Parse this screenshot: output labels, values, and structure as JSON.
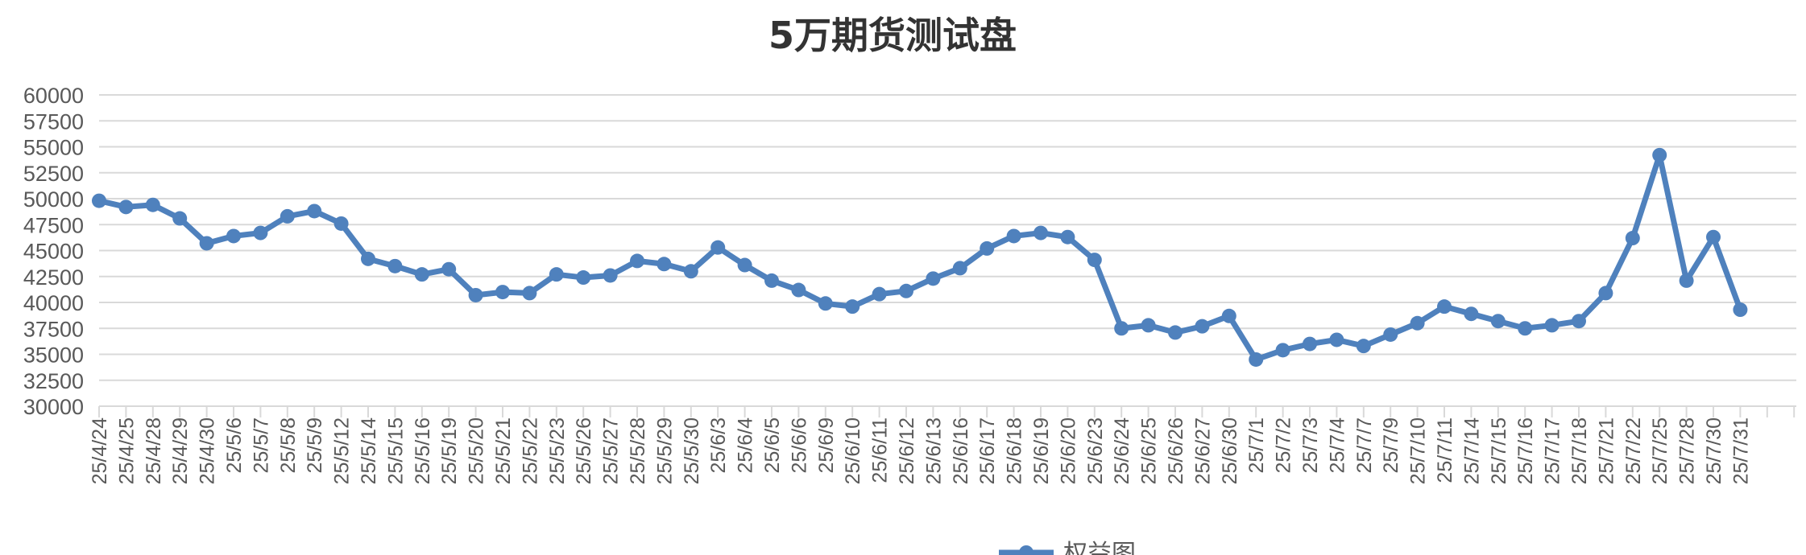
{
  "chart_data": {
    "type": "line",
    "title": "5万期货测试盘",
    "xlabel": "",
    "ylabel": "",
    "ylim": [
      30000,
      60000
    ],
    "y_ticks": [
      30000,
      32500,
      35000,
      37500,
      40000,
      42500,
      45000,
      47500,
      50000,
      52500,
      55000,
      57500,
      60000
    ],
    "grid": true,
    "legend_position": "bottom",
    "color": "#4f81bd",
    "categories": [
      "25/4/24",
      "25/4/25",
      "25/4/28",
      "25/4/29",
      "25/4/30",
      "25/5/6",
      "25/5/7",
      "25/5/8",
      "25/5/9",
      "25/5/12",
      "25/5/14",
      "25/5/15",
      "25/5/16",
      "25/5/19",
      "25/5/20",
      "25/5/21",
      "25/5/22",
      "25/5/23",
      "25/5/26",
      "25/5/27",
      "25/5/28",
      "25/5/29",
      "25/5/30",
      "25/6/3",
      "25/6/4",
      "25/6/5",
      "25/6/6",
      "25/6/9",
      "25/6/10",
      "25/6/11",
      "25/6/12",
      "25/6/13",
      "25/6/16",
      "25/6/17",
      "25/6/18",
      "25/6/19",
      "25/6/20",
      "25/6/23",
      "25/6/24",
      "25/6/25",
      "25/6/26",
      "25/6/27",
      "25/6/30",
      "25/7/1",
      "25/7/2",
      "25/7/3",
      "25/7/4",
      "25/7/7",
      "25/7/9",
      "25/7/10",
      "25/7/11",
      "25/7/14",
      "25/7/15",
      "25/7/16",
      "25/7/17",
      "25/7/18",
      "25/7/21",
      "25/7/22",
      "25/7/25",
      "25/7/28",
      "25/7/30",
      "25/7/31"
    ],
    "series": [
      {
        "name": "权益图",
        "values": [
          49800,
          49200,
          49400,
          48100,
          45700,
          46400,
          46700,
          48300,
          48800,
          47600,
          44200,
          43500,
          42700,
          43200,
          40700,
          41000,
          40900,
          42700,
          42400,
          42600,
          44000,
          43700,
          43000,
          45300,
          43600,
          42100,
          41200,
          39900,
          39600,
          40800,
          41100,
          42300,
          43300,
          45200,
          46400,
          46700,
          46300,
          44100,
          37500,
          37800,
          37100,
          37700,
          38700,
          34500,
          35400,
          36000,
          36400,
          35800,
          36900,
          38000,
          39600,
          38900,
          38200,
          37500,
          37800,
          38200,
          40900,
          46200,
          54200,
          42100,
          46300,
          39300
        ]
      }
    ]
  }
}
